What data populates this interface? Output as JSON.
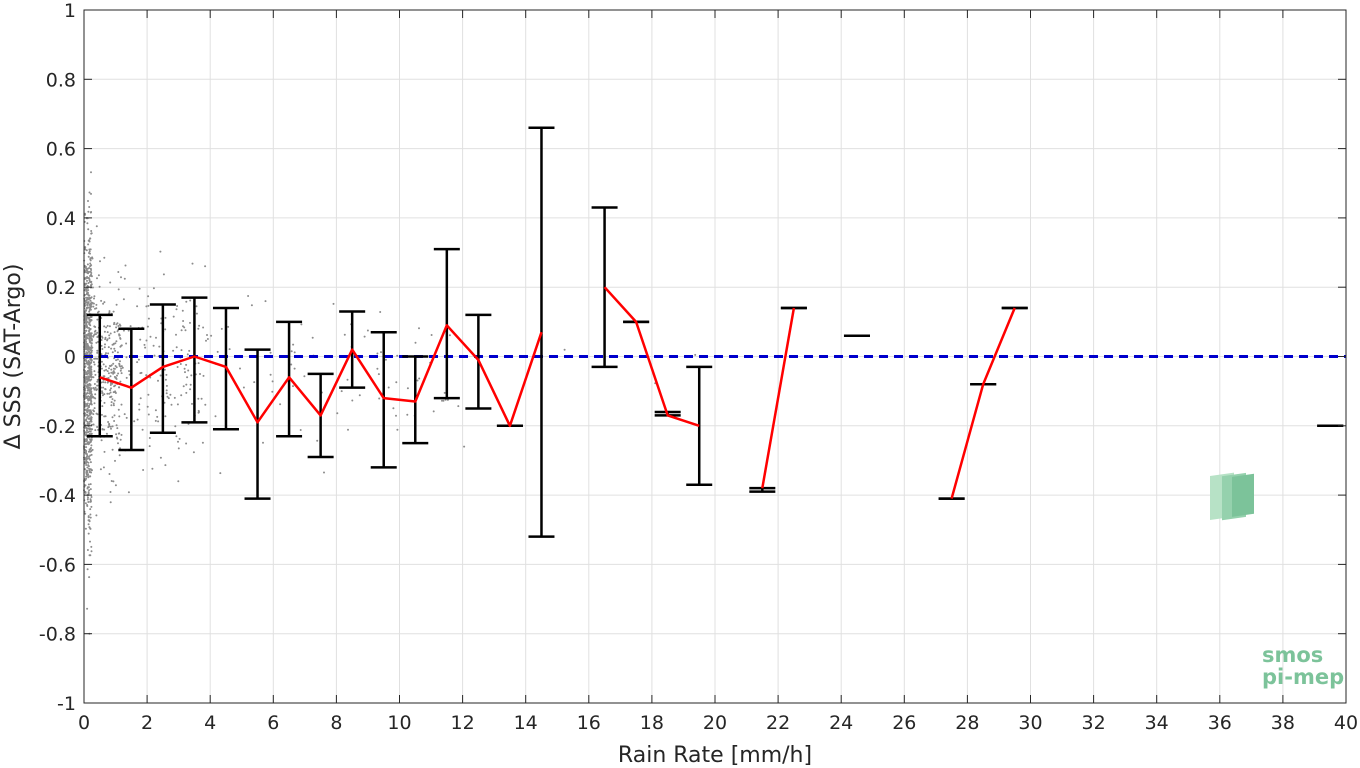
{
  "chart_data": {
    "type": "scatter",
    "title": "",
    "xlabel": "Rain Rate [mm/h]",
    "ylabel": "Δ SSS (SAT-Argo)",
    "xlim": [
      0,
      40
    ],
    "ylim": [
      -1,
      1
    ],
    "grid": true,
    "x_ticks": [
      "0",
      "2",
      "4",
      "6",
      "8",
      "10",
      "12",
      "14",
      "16",
      "18",
      "20",
      "22",
      "24",
      "26",
      "28",
      "30",
      "32",
      "34",
      "36",
      "38",
      "40"
    ],
    "y_ticks": [
      "1",
      "0.8",
      "0.6",
      "0.4",
      "0.2",
      "0",
      "-0.2",
      "-0.4",
      "-0.6",
      "-0.8",
      "-1"
    ],
    "reference_line": {
      "y": 0,
      "style": "dashed",
      "color": "#0000cc"
    },
    "errorbars": [
      {
        "x": 0.5,
        "low": -0.23,
        "high": 0.12
      },
      {
        "x": 1.5,
        "low": -0.27,
        "high": 0.08
      },
      {
        "x": 2.5,
        "low": -0.22,
        "high": 0.15
      },
      {
        "x": 3.5,
        "low": -0.19,
        "high": 0.17
      },
      {
        "x": 4.5,
        "low": -0.21,
        "high": 0.14
      },
      {
        "x": 5.5,
        "low": -0.41,
        "high": 0.02
      },
      {
        "x": 6.5,
        "low": -0.23,
        "high": 0.1
      },
      {
        "x": 7.5,
        "low": -0.29,
        "high": -0.05
      },
      {
        "x": 8.5,
        "low": -0.09,
        "high": 0.13
      },
      {
        "x": 9.5,
        "low": -0.32,
        "high": 0.07
      },
      {
        "x": 10.5,
        "low": -0.25,
        "high": 0.0
      },
      {
        "x": 11.5,
        "low": -0.12,
        "high": 0.31
      },
      {
        "x": 12.5,
        "low": -0.15,
        "high": 0.12
      },
      {
        "x": 13.5,
        "low": -0.2,
        "high": -0.2
      },
      {
        "x": 14.5,
        "low": -0.52,
        "high": 0.66
      },
      {
        "x": 16.5,
        "low": -0.03,
        "high": 0.43
      },
      {
        "x": 17.5,
        "low": 0.1,
        "high": 0.1
      },
      {
        "x": 18.5,
        "low": -0.17,
        "high": -0.16
      },
      {
        "x": 19.5,
        "low": -0.37,
        "high": -0.03
      },
      {
        "x": 21.5,
        "low": -0.39,
        "high": -0.38
      },
      {
        "x": 22.5,
        "low": 0.14,
        "high": 0.14
      },
      {
        "x": 24.5,
        "low": 0.06,
        "high": 0.06
      },
      {
        "x": 28.5,
        "low": -0.08,
        "high": -0.08
      },
      {
        "x": 27.5,
        "low": -0.41,
        "high": -0.41
      },
      {
        "x": 29.5,
        "low": 0.14,
        "high": 0.14
      },
      {
        "x": 39.5,
        "low": -0.2,
        "high": -0.2
      }
    ],
    "mean_series": [
      [
        [
          0.5,
          -0.06
        ],
        [
          1.5,
          -0.09
        ],
        [
          2.5,
          -0.03
        ],
        [
          3.5,
          0.0
        ],
        [
          4.5,
          -0.03
        ],
        [
          5.5,
          -0.19
        ],
        [
          6.5,
          -0.06
        ],
        [
          7.5,
          -0.17
        ],
        [
          8.5,
          0.02
        ],
        [
          9.5,
          -0.12
        ],
        [
          10.5,
          -0.13
        ],
        [
          11.5,
          0.09
        ],
        [
          12.5,
          -0.01
        ],
        [
          13.5,
          -0.2
        ],
        [
          14.5,
          0.07
        ]
      ],
      [
        [
          16.5,
          0.2
        ],
        [
          17.5,
          0.1
        ],
        [
          18.5,
          -0.17
        ],
        [
          19.5,
          -0.2
        ]
      ],
      [
        [
          21.5,
          -0.38
        ],
        [
          22.5,
          0.14
        ]
      ],
      [
        [
          27.5,
          -0.41
        ],
        [
          28.5,
          -0.08
        ],
        [
          29.5,
          0.14
        ]
      ]
    ],
    "scatter_description_count": 1400,
    "colors": {
      "mean_line": "#ff0000",
      "errorbar": "#000000",
      "scatter": "#8c8c8c",
      "grid": "#e0e0e0"
    }
  },
  "logo": {
    "line1": "smos",
    "line2": "pi-mep"
  }
}
